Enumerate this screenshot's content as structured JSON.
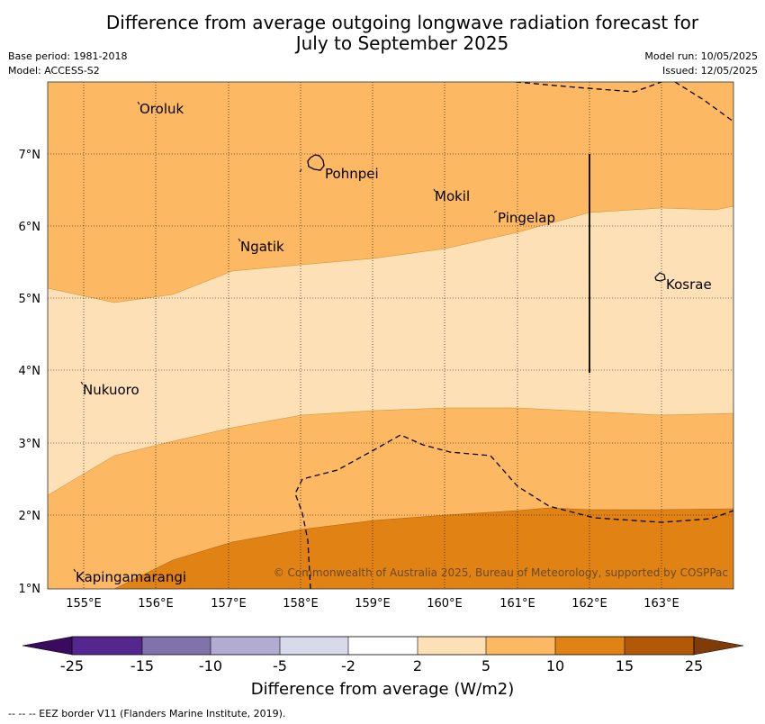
{
  "title_line1": "Difference from average outgoing longwave radiation forecast for",
  "title_line2": "July to September 2025",
  "base_period": "Base period: 1981-2018",
  "model": "Model: ACCESS-S2",
  "model_run": "Model run: 10/05/2025",
  "issued": "Issued: 12/05/2025",
  "copyright": "© Commonwealth of Australia 2025, Bureau of Meteorology, supported by COSPPac",
  "eez_note": "--  --  -- EEZ border V11 (Flanders Marine Institute, 2019).",
  "lon_ticks": [
    "155°E",
    "156°E",
    "157°E",
    "158°E",
    "159°E",
    "160°E",
    "161°E",
    "162°E",
    "163°E"
  ],
  "lat_ticks": [
    "7°N",
    "6°N",
    "5°N",
    "4°N",
    "3°N",
    "2°N",
    "1°N"
  ],
  "places": [
    {
      "name": "Oroluk"
    },
    {
      "name": "Pohnpei"
    },
    {
      "name": "Mokil"
    },
    {
      "name": "Pingelap"
    },
    {
      "name": "Ngatik"
    },
    {
      "name": "Kosrae"
    },
    {
      "name": "Nukuoro"
    },
    {
      "name": "Kapingamarangi"
    }
  ],
  "colorbar": {
    "title": "Difference from average (W/m2)",
    "ticks": [
      "-25",
      "-15",
      "-10",
      "-5",
      "-2",
      "2",
      "5",
      "10",
      "15",
      "25"
    ],
    "colors": [
      "#3a0a5e",
      "#54278f",
      "#8073ac",
      "#b2abd2",
      "#d8daeb",
      "#ffffff",
      "#fee0b6",
      "#fdb863",
      "#e08214",
      "#b35806",
      "#7f3b08"
    ]
  }
}
